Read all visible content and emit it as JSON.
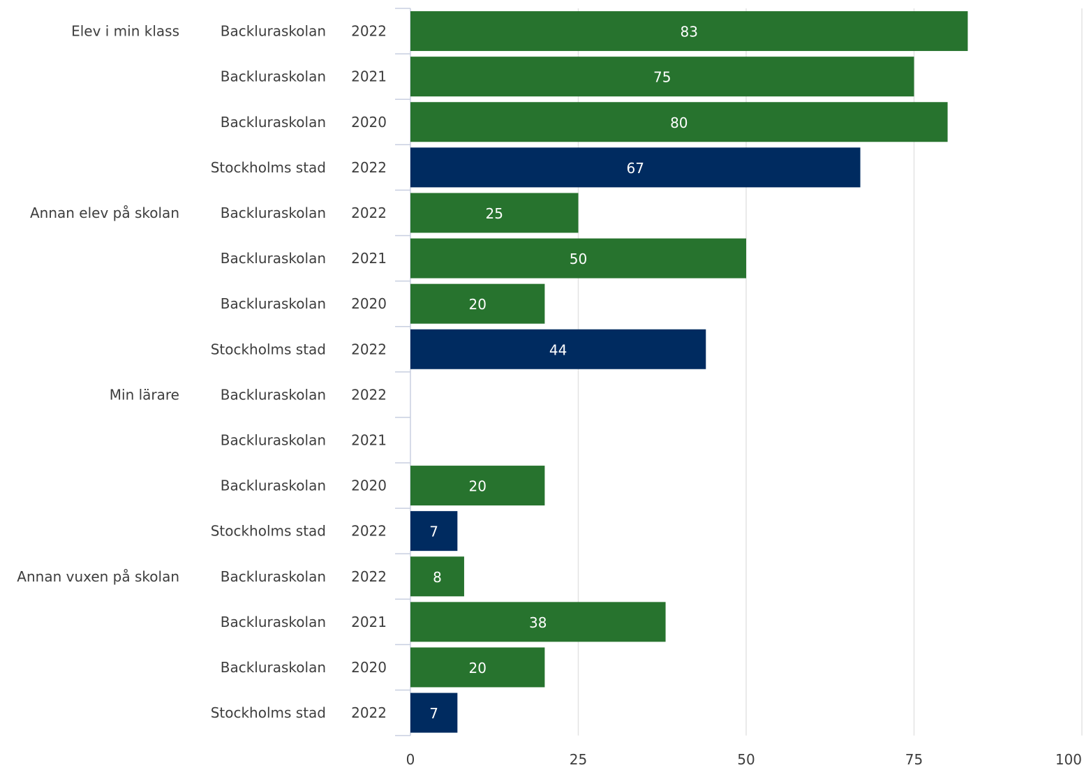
{
  "chart_data": {
    "type": "bar",
    "orientation": "horizontal",
    "xlim": [
      0,
      100
    ],
    "xticks": [
      "0",
      "25",
      "50",
      "75",
      "100"
    ],
    "grid": true,
    "colors": {
      "Backluraskolan": "#27732e",
      "Stockholms stad": "#002b60"
    },
    "rows": [
      {
        "group": "Elev i min klass",
        "unit": "Backluraskolan",
        "year": "2022",
        "value": 83,
        "label": "83"
      },
      {
        "group": "",
        "unit": "Backluraskolan",
        "year": "2021",
        "value": 75,
        "label": "75"
      },
      {
        "group": "",
        "unit": "Backluraskolan",
        "year": "2020",
        "value": 80,
        "label": "80"
      },
      {
        "group": "",
        "unit": "Stockholms stad",
        "year": "2022",
        "value": 67,
        "label": "67"
      },
      {
        "group": "Annan elev på skolan",
        "unit": "Backluraskolan",
        "year": "2022",
        "value": 25,
        "label": "25"
      },
      {
        "group": "",
        "unit": "Backluraskolan",
        "year": "2021",
        "value": 50,
        "label": "50"
      },
      {
        "group": "",
        "unit": "Backluraskolan",
        "year": "2020",
        "value": 20,
        "label": "20"
      },
      {
        "group": "",
        "unit": "Stockholms stad",
        "year": "2022",
        "value": 44,
        "label": "44"
      },
      {
        "group": "Min lärare",
        "unit": "Backluraskolan",
        "year": "2022",
        "value": null,
        "label": ""
      },
      {
        "group": "",
        "unit": "Backluraskolan",
        "year": "2021",
        "value": null,
        "label": ""
      },
      {
        "group": "",
        "unit": "Backluraskolan",
        "year": "2020",
        "value": 20,
        "label": "20"
      },
      {
        "group": "",
        "unit": "Stockholms stad",
        "year": "2022",
        "value": 7,
        "label": "7"
      },
      {
        "group": "Annan vuxen på skolan",
        "unit": "Backluraskolan",
        "year": "2022",
        "value": 8,
        "label": "8"
      },
      {
        "group": "",
        "unit": "Backluraskolan",
        "year": "2021",
        "value": 38,
        "label": "38"
      },
      {
        "group": "",
        "unit": "Backluraskolan",
        "year": "2020",
        "value": 20,
        "label": "20"
      },
      {
        "group": "",
        "unit": "Stockholms stad",
        "year": "2022",
        "value": 7,
        "label": "7"
      }
    ]
  }
}
